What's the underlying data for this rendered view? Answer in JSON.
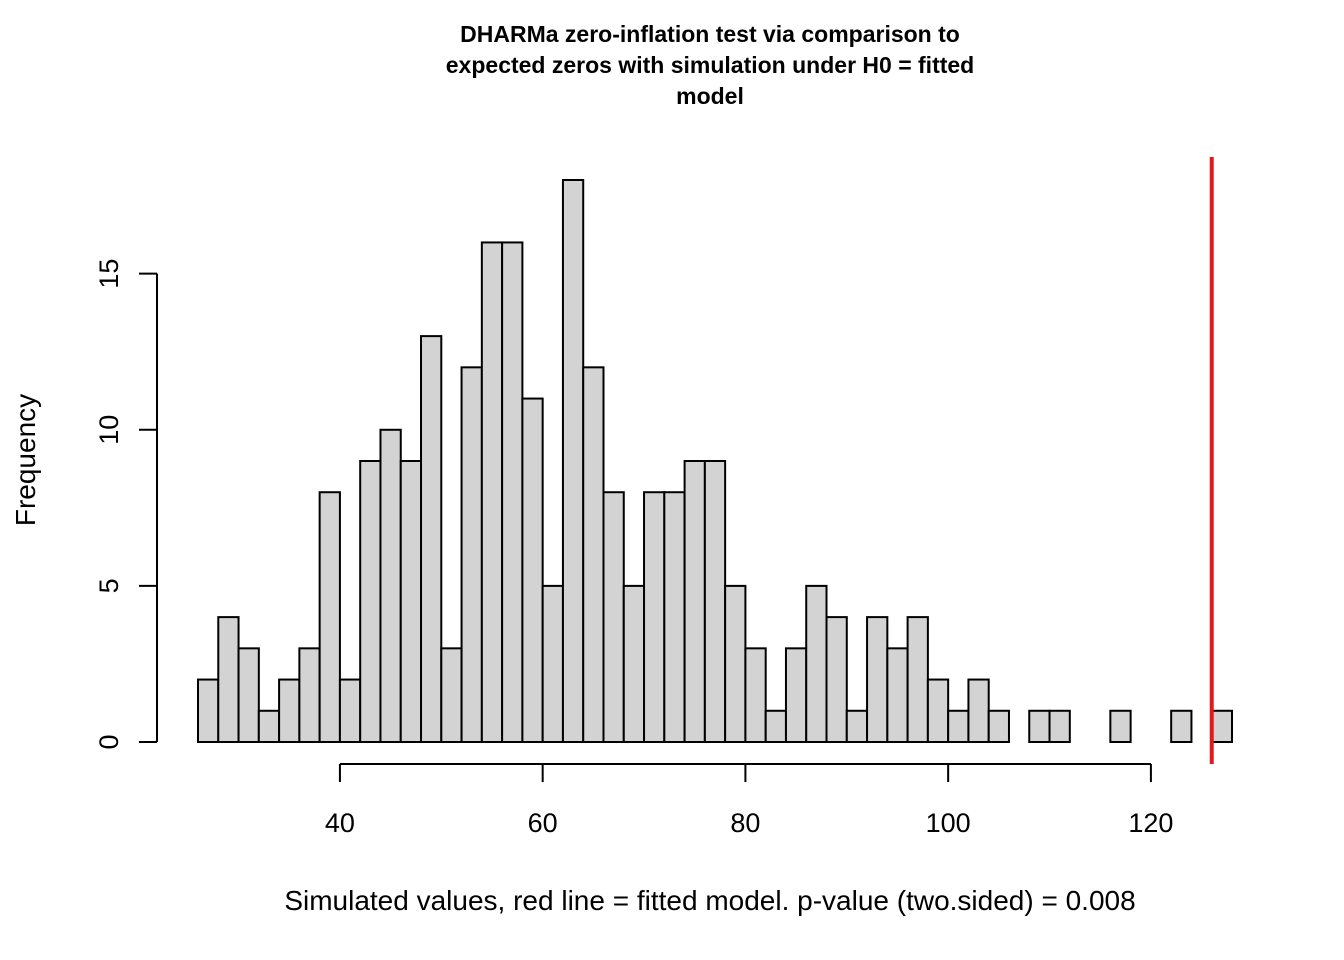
{
  "chart_data": {
    "type": "bar",
    "title_lines": [
      "DHARMa zero-inflation test via comparison to",
      "expected zeros with simulation under H0 = fitted",
      "model"
    ],
    "xlabel": "Simulated values, red line = fitted model. p-value (two.sided) = 0.008",
    "ylabel": "Frequency",
    "bin_width": 2,
    "bin_start": 26,
    "counts": [
      2,
      4,
      3,
      1,
      2,
      3,
      8,
      2,
      9,
      10,
      9,
      13,
      3,
      12,
      16,
      16,
      11,
      5,
      18,
      12,
      8,
      5,
      8,
      8,
      9,
      9,
      5,
      3,
      1,
      3,
      5,
      4,
      1,
      4,
      3,
      4,
      2,
      1,
      2,
      1,
      0,
      1,
      1,
      0,
      0,
      1,
      0,
      0,
      1,
      0,
      1
    ],
    "xlim": [
      26,
      128
    ],
    "ylim": [
      0,
      18
    ],
    "x_ticks": [
      40,
      60,
      80,
      100,
      120
    ],
    "y_ticks": [
      0,
      5,
      10,
      15
    ],
    "observed_value": 126,
    "observed_line_color": "#e31a1c",
    "bar_fill": "#d3d3d3",
    "grid": false
  }
}
